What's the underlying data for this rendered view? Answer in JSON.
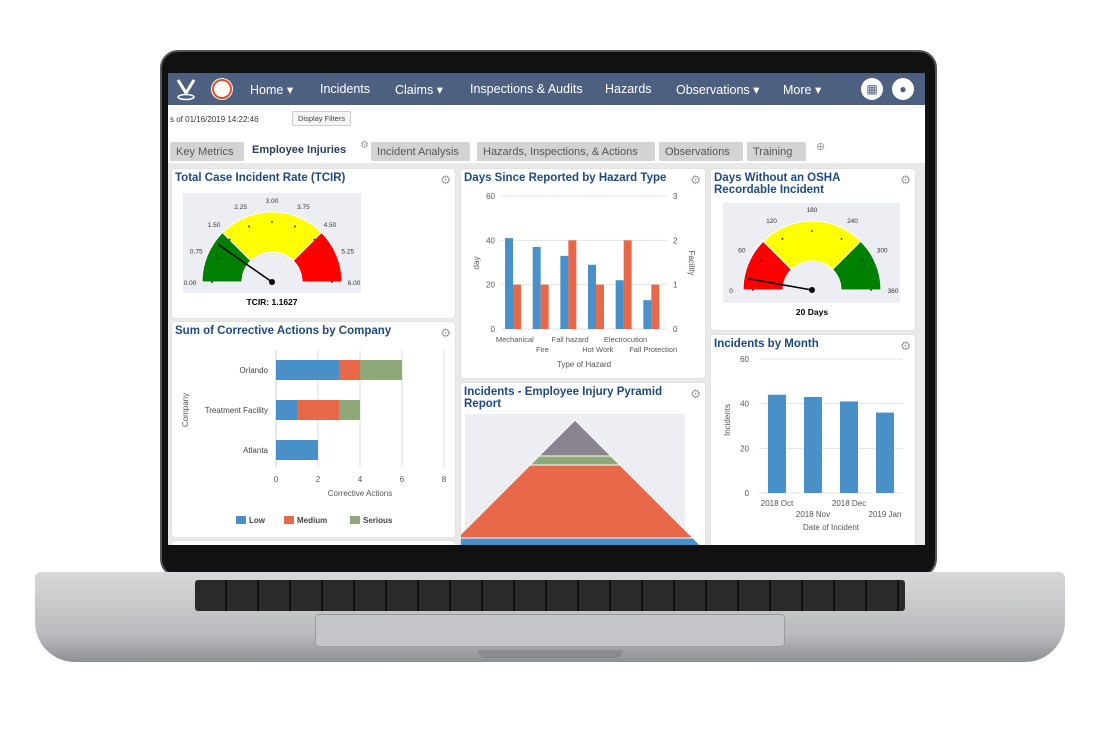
{
  "nav": {
    "items": [
      {
        "label": "Home ▾"
      },
      {
        "label": "Incidents"
      },
      {
        "label": "Claims ▾"
      },
      {
        "label": "Inspections & Audits"
      },
      {
        "label": "Hazards"
      },
      {
        "label": "Observations ▾"
      },
      {
        "label": "More ▾"
      }
    ],
    "apps_icon": "grid-icon",
    "user_icon": "avatar-icon"
  },
  "toolbar": {
    "as_of": "s of 01/16/2019 14:22:46",
    "display_filters": "Display Filters"
  },
  "tabs": [
    {
      "label": "Key Metrics"
    },
    {
      "label": "Employee Injuries",
      "active": true
    },
    {
      "label": "Incident Analysis"
    },
    {
      "label": "Hazards, Inspections, & Actions"
    },
    {
      "label": "Observations"
    },
    {
      "label": "Training"
    }
  ],
  "panels": {
    "tcir": "Total Case Incident Rate (TCIR)",
    "corrective": "Sum of Corrective Actions by Company",
    "hazard": "Days Since Reported by Hazard Type",
    "pyramid": "Incidents - Employee Injury Pyramid Report",
    "osha": "Days Without an OSHA Recordable Incident",
    "month": "Incidents by Month"
  },
  "colors": {
    "nav": "#4e6080",
    "blue": "#4a90c8",
    "orange": "#e8694a",
    "gray_green": "#8fa878",
    "green": "#008000",
    "yellow": "#ffff00",
    "red": "#ff0000"
  },
  "chart_data": [
    {
      "id": "tcir",
      "type": "gauge",
      "min": 0,
      "max": 6,
      "value": 1.1627,
      "label": "TCIR: 1.1627",
      "ticks": [
        "0.00",
        "0.75",
        "1.50",
        "2.25",
        "3.00",
        "3.75",
        "4.50",
        "5.25",
        "6.00"
      ],
      "bands": [
        {
          "from": 0,
          "to": 1.5,
          "color": "#008000"
        },
        {
          "from": 1.5,
          "to": 4.5,
          "color": "#ffff00"
        },
        {
          "from": 4.5,
          "to": 6,
          "color": "#ff0000"
        }
      ]
    },
    {
      "id": "corrective",
      "type": "bar",
      "orientation": "horizontal",
      "stacked": true,
      "categories": [
        "Orlando",
        "Treatment Facility",
        "Atlanta"
      ],
      "series": [
        {
          "name": "Low",
          "values": [
            3,
            1,
            2
          ],
          "color": "#4a90c8"
        },
        {
          "name": "Medium",
          "values": [
            1,
            2,
            0
          ],
          "color": "#e8694a"
        },
        {
          "name": "Serious",
          "values": [
            2,
            1,
            0
          ],
          "color": "#8fa878"
        }
      ],
      "xlabel": "Corrective Actions",
      "ylabel": "Company",
      "xlim": [
        0,
        8
      ],
      "xticks": [
        "0",
        "2",
        "4",
        "6",
        "8"
      ],
      "legend": "bottom"
    },
    {
      "id": "hazard",
      "type": "bar",
      "categories": [
        "Mechanical",
        "Fire",
        "Fall hazard",
        "Hot Work",
        "Electrocution",
        "Fall Protection"
      ],
      "series": [
        {
          "values": [
            41,
            37,
            33,
            29,
            22,
            13
          ],
          "color": "#4a90c8",
          "axis": "left"
        },
        {
          "values": [
            1,
            1,
            2,
            1,
            2,
            1
          ],
          "color": "#e8694a",
          "axis": "right"
        }
      ],
      "xlabel": "Type of Hazard",
      "ylabel": "day",
      "y2label": "Facility",
      "ylim": [
        0,
        60
      ],
      "y2lim": [
        0,
        3
      ],
      "yticks": [
        "0",
        "20",
        "40",
        "60"
      ],
      "y2ticks": [
        "0",
        "1",
        "2",
        "3"
      ],
      "grid": true
    },
    {
      "id": "osha",
      "type": "gauge",
      "min": 0,
      "max": 360,
      "value": 20,
      "label": "20 Days",
      "ticks": [
        "0",
        "60",
        "120",
        "180",
        "240",
        "300",
        "360"
      ],
      "bands": [
        {
          "from": 0,
          "to": 90,
          "color": "#ff0000"
        },
        {
          "from": 90,
          "to": 270,
          "color": "#ffff00"
        },
        {
          "from": 270,
          "to": 360,
          "color": "#008000"
        }
      ]
    },
    {
      "id": "month",
      "type": "bar",
      "categories": [
        "2018 Oct",
        "2018 Nov",
        "2018 Dec",
        "2019 Jan"
      ],
      "values": [
        44,
        43,
        41,
        36
      ],
      "xlabel": "Date of Incident",
      "ylabel": "Incidents",
      "ylim": [
        0,
        60
      ],
      "yticks": [
        "0",
        "20",
        "40",
        "60"
      ],
      "grid": true
    },
    {
      "id": "pyramid",
      "type": "pyramid",
      "layers": [
        {
          "color": "#8a8490"
        },
        {
          "color": "#8fa878"
        },
        {
          "color": "#e8694a"
        },
        {
          "color": "#4a90c8"
        }
      ]
    }
  ]
}
